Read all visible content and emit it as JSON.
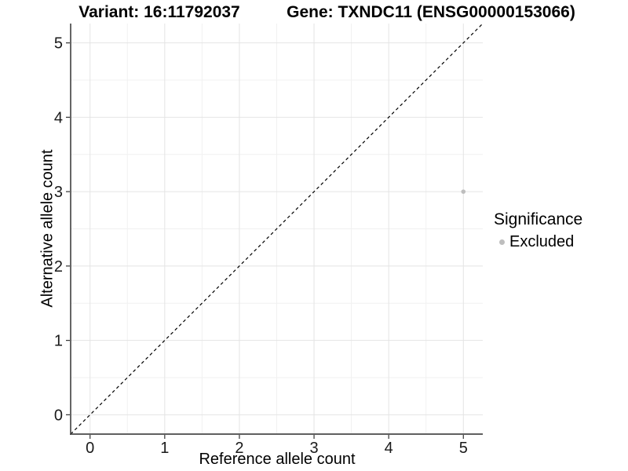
{
  "titles": {
    "variant": "Variant: 16:11792037",
    "gene": "Gene: TXNDC11 (ENSG00000153066)"
  },
  "chart_data": {
    "type": "scatter",
    "title": "",
    "xlabel": "Reference allele count",
    "ylabel": "Alternative allele count",
    "xlim": [
      -0.26,
      5.26
    ],
    "ylim": [
      -0.26,
      5.26
    ],
    "xticks": [
      0,
      1,
      2,
      3,
      4,
      5
    ],
    "yticks": [
      0,
      1,
      2,
      3,
      4,
      5
    ],
    "grid": {
      "major_every": 1,
      "minor_every": 0.5,
      "major_color": "#e4e4e4",
      "minor_color": "#f1f1f1"
    },
    "series": [
      {
        "name": "Excluded",
        "marker": "circle",
        "color": "#bebebe",
        "points": [
          {
            "x": 5,
            "y": 3
          }
        ]
      }
    ],
    "reference_line": {
      "kind": "identity y = x",
      "style": "dashed",
      "color": "#000000"
    },
    "legend_position": "right"
  },
  "legend": {
    "title": "Significance",
    "items": [
      {
        "label": "Excluded",
        "color": "#bebebe",
        "marker": "circle"
      }
    ]
  },
  "style": {
    "axis_line_color": "#4a4a4a",
    "tick_color": "#333333",
    "tick_label_color": "#1a1a1a",
    "text_color": "#000000",
    "background": "#ffffff"
  }
}
